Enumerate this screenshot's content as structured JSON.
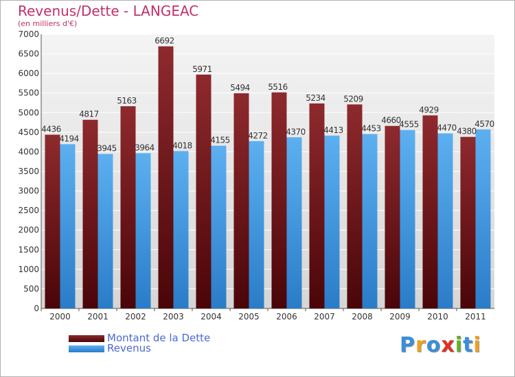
{
  "title": "Revenus/Dette - LANGEAC",
  "subtitle": "(en milliers d'€)",
  "logo": {
    "text": "Proxiti",
    "letters": [
      "P",
      "r",
      "o",
      "x",
      "i",
      "t",
      "i"
    ],
    "colors": [
      "#3a8fd8",
      "#f0a020",
      "#3a8fd8",
      "#e03020",
      "#60b030",
      "#3a8fd8",
      "#f0a020"
    ]
  },
  "colors": {
    "dette": "#7a1a1f",
    "revenus": "#4da3e8",
    "title": "#c0306a",
    "legend_text": "#4a6ad0"
  },
  "chart_data": {
    "type": "bar",
    "title": "Revenus/Dette - LANGEAC",
    "subtitle": "(en milliers d'€)",
    "xlabel": "",
    "ylabel": "",
    "ylim": [
      0,
      7000
    ],
    "yticks": [
      0,
      500,
      1000,
      1500,
      2000,
      2500,
      3000,
      3500,
      4000,
      4500,
      5000,
      5500,
      6000,
      6500,
      7000
    ],
    "grid": true,
    "legend_position": "bottom-left",
    "categories": [
      "2000",
      "2001",
      "2002",
      "2003",
      "2004",
      "2005",
      "2006",
      "2007",
      "2008",
      "2009",
      "2010",
      "2011"
    ],
    "series": [
      {
        "name": "Montant de la Dette",
        "color": "#7a1a1f",
        "values": [
          4436,
          4817,
          5163,
          6692,
          5971,
          5494,
          5516,
          5234,
          5209,
          4660,
          4929,
          4380
        ]
      },
      {
        "name": "Revenus",
        "color": "#4da3e8",
        "values": [
          4194,
          3945,
          3964,
          4018,
          4155,
          4272,
          4370,
          4413,
          4453,
          4555,
          4470,
          4570
        ]
      }
    ]
  }
}
